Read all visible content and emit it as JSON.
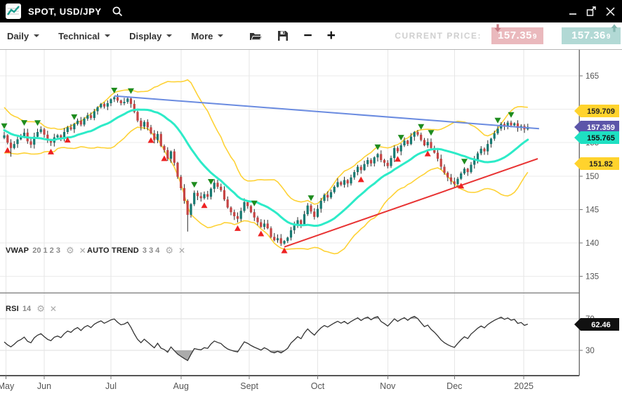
{
  "titlebar": {
    "title": "SPOT, USD/JPY"
  },
  "toolbar": {
    "menus": [
      "Daily",
      "Technical",
      "Display",
      "More"
    ],
    "current_price_label": "CURRENT PRICE:",
    "bid": {
      "main": "157.35",
      "pip": "9"
    },
    "ask": {
      "main": "157.36",
      "pip": "9"
    },
    "bid_color": "#eab9bd",
    "ask_color": "#b2d9d5"
  },
  "legends": {
    "vwap": {
      "name": "VWAP",
      "params": "20 1 2 3"
    },
    "auto_trend": {
      "name": "AUTO TREND",
      "params": "3 3 4"
    },
    "rsi": {
      "name": "RSI",
      "params": "14"
    }
  },
  "chart_data": {
    "type": "candlestick",
    "symbol": "SPOT, USD/JPY",
    "timeframe": "Daily",
    "y_ticks_price": [
      165,
      160,
      155,
      150,
      145,
      140,
      135
    ],
    "rsi_ticks": [
      70,
      30
    ],
    "x_ticks": [
      {
        "label": "May",
        "i": 0.5
      },
      {
        "label": "Jun",
        "i": 12
      },
      {
        "label": "Jul",
        "i": 32
      },
      {
        "label": "Aug",
        "i": 53
      },
      {
        "label": "Sept",
        "i": 73.5
      },
      {
        "label": "Oct",
        "i": 94
      },
      {
        "label": "Nov",
        "i": 115
      },
      {
        "label": "Dec",
        "i": 135
      },
      {
        "label": "2025",
        "i": 155.8
      }
    ],
    "candles": {
      "pre_closes": [
        160.1,
        160.3,
        159.9,
        158.4,
        157.6,
        158.3,
        157.9,
        156.6,
        155.7,
        156.2,
        157.0,
        157.8,
        158.3,
        157.1,
        156.3,
        155.3,
        153.2,
        154.5,
        155.2,
        155.7
      ],
      "closes": [
        156.1,
        155.0,
        154.2,
        154.8,
        155.5,
        155.9,
        156.5,
        155.2,
        154.7,
        155.9,
        156.6,
        157.0,
        156.2,
        155.4,
        155.0,
        155.8,
        156.1,
        155.7,
        156.6,
        157.3,
        157.0,
        157.8,
        158.3,
        157.7,
        158.6,
        159.1,
        158.7,
        159.7,
        160.3,
        160.8,
        160.4,
        160.9,
        161.5,
        161.8,
        161.3,
        160.9,
        161.1,
        161.6,
        160.8,
        159.6,
        158.3,
        157.4,
        158.1,
        157.3,
        156.4,
        155.4,
        156.3,
        154.5,
        153.9,
        152.6,
        153.7,
        152.0,
        149.9,
        148.2,
        146.3,
        144.2,
        145.8,
        147.5,
        147.0,
        146.7,
        147.3,
        146.9,
        148.1,
        149.0,
        148.4,
        147.9,
        146.5,
        145.3,
        144.6,
        144.0,
        143.6,
        144.8,
        146.1,
        145.5,
        144.6,
        143.8,
        143.1,
        142.4,
        142.9,
        142.2,
        140.9,
        140.4,
        140.7,
        139.9,
        140.3,
        140.8,
        141.9,
        142.6,
        143.4,
        142.8,
        144.3,
        145.6,
        144.7,
        143.9,
        145.1,
        146.3,
        147.2,
        146.8,
        147.6,
        148.4,
        149.1,
        148.7,
        149.4,
        148.9,
        149.8,
        150.6,
        151.4,
        150.9,
        151.8,
        152.4,
        151.9,
        152.8,
        153.3,
        152.4,
        152.0,
        151.5,
        152.7,
        154.2,
        153.7,
        154.6,
        155.3,
        154.8,
        155.9,
        156.6,
        156.2,
        155.4,
        154.6,
        155.1,
        154.2,
        153.5,
        152.6,
        151.4,
        150.5,
        149.8,
        149.2,
        148.8,
        149.6,
        150.4,
        151.1,
        150.6,
        151.7,
        152.5,
        153.4,
        154.1,
        153.7,
        154.8,
        155.6,
        156.4,
        157.1,
        157.8,
        157.4,
        158.0,
        157.6,
        157.9,
        157.2,
        157.5,
        157.0,
        157.36
      ],
      "wick_overrides": {
        "2": {
          "low": 152.9
        },
        "33": {
          "high": 161.95
        },
        "55": {
          "low": 141.7
        },
        "83": {
          "low": 139.55
        }
      }
    },
    "indicators": {
      "vwap_period": 20,
      "band_mult": 2,
      "rsi_period": 14
    },
    "trendlines": [
      {
        "name": "descending-resistance",
        "color": "#6a8be0",
        "from": [
          33,
          162.0
        ],
        "to": [
          160.4,
          157.1
        ]
      },
      {
        "name": "ascending-support",
        "color": "#e83333",
        "from": [
          84,
          139.4
        ],
        "to": [
          160.0,
          152.6
        ]
      }
    ],
    "markers": {
      "sell_indices": [
        0,
        6,
        10,
        21,
        33,
        38,
        57,
        62,
        75,
        92,
        112,
        119,
        125,
        128,
        138,
        148,
        152
      ],
      "buy_indices": [
        1,
        14,
        19,
        44,
        48,
        60,
        70,
        77,
        84,
        107,
        118,
        127,
        137
      ]
    },
    "price_tags": [
      {
        "value": "159.709",
        "price": 159.709,
        "bg": "#ffd32d",
        "fg": "#222222"
      },
      {
        "value": "157.359",
        "price": 157.359,
        "bg": "#5c55a9",
        "fg": "#ffffff"
      },
      {
        "value": "155.765",
        "price": 155.765,
        "bg": "#1ee0c2",
        "fg": "#111111"
      },
      {
        "value": "151.82",
        "price": 151.82,
        "bg": "#ffd32d",
        "fg": "#222222"
      }
    ],
    "rsi_tag": {
      "value": "62.46",
      "level": 62.46,
      "bg": "#111111",
      "fg": "#ffffff"
    },
    "colors": {
      "up": "#177a72",
      "down": "#c64444",
      "ma": "#2debc8",
      "band": "#fed236",
      "rsi": "#333333",
      "rsi_fill": "#ababab",
      "grid": "#ebebeb",
      "vgrid": "#e6e6e6",
      "axis": "#777777",
      "label": "#555555",
      "sell": "#1e8c1e",
      "buy": "#ee2222"
    }
  }
}
